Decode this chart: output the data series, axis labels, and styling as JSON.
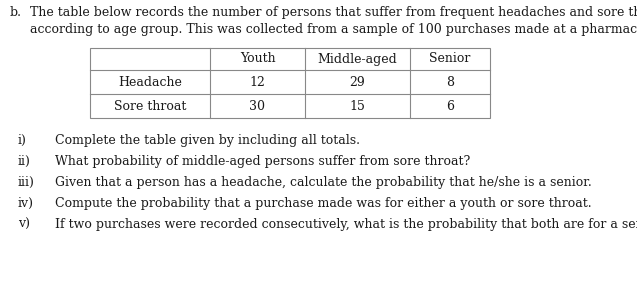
{
  "prefix_letter": "b.",
  "intro_line1": "The table below records the number of persons that suffer from frequent headaches and sore throat",
  "intro_line2": "according to age group. This was collected from a sample of 100 purchases made at a pharmacy.",
  "col_headers": [
    "Youth",
    "Middle-aged",
    "Senior"
  ],
  "row_headers": [
    "Headache",
    "Sore throat"
  ],
  "table_data": [
    [
      12,
      29,
      8
    ],
    [
      30,
      15,
      6
    ]
  ],
  "questions": [
    [
      "i)",
      "Complete the table given by including all totals."
    ],
    [
      "ii)",
      "What probability of middle-aged persons suffer from sore throat?"
    ],
    [
      "iii)",
      "Given that a person has a headache, calculate the probability that he/she is a senior."
    ],
    [
      "iv)",
      "Compute the probability that a purchase made was for either a youth or sore throat."
    ],
    [
      "v)",
      "If two purchases were recorded consecutively, what is the probability that both are for a senior?"
    ]
  ],
  "bg_color": "#ffffff",
  "text_color": "#1a1a1a",
  "font_size": 9.0,
  "table_font_size": 9.0,
  "line_color": "#888888"
}
